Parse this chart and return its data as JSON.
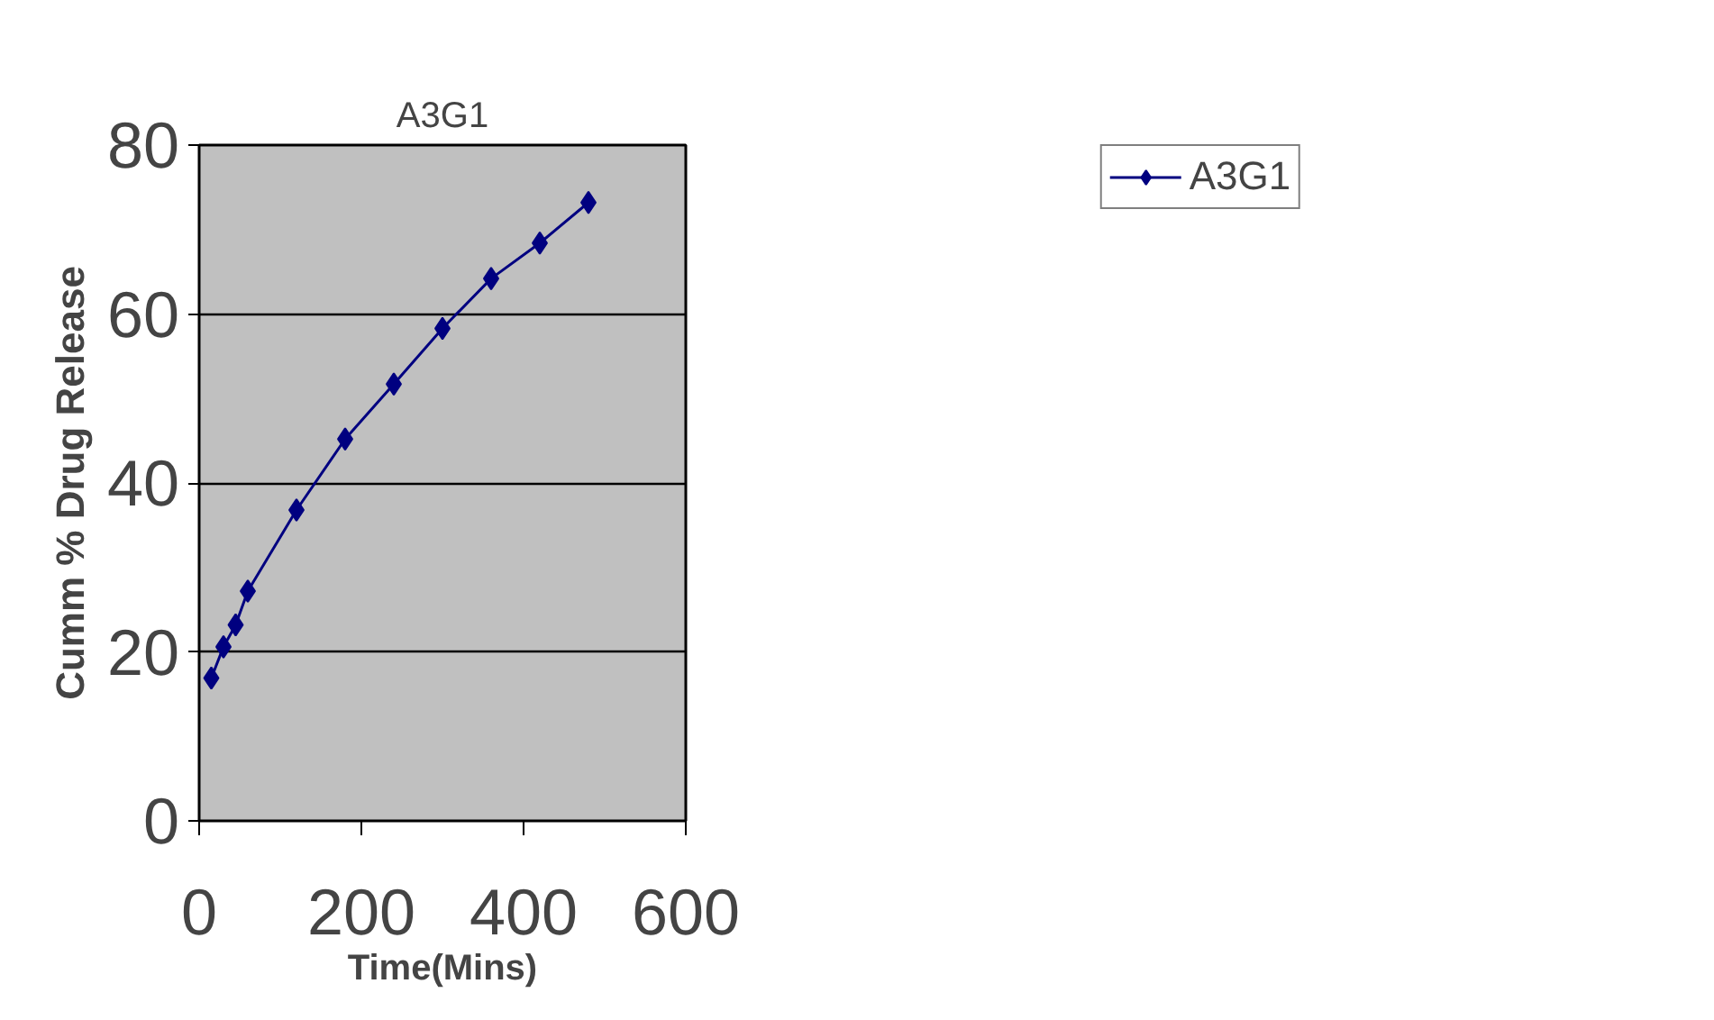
{
  "chart_data": {
    "type": "line",
    "title": "A3G1",
    "xlabel": "Time(Mins)",
    "ylabel": "Cumm % Drug Release",
    "x": [
      15,
      30,
      45,
      60,
      120,
      180,
      240,
      300,
      360,
      420,
      480
    ],
    "series": [
      {
        "name": "A3G1",
        "color": "#000080",
        "values": [
          16.9,
          20.6,
          23.2,
          27.2,
          36.8,
          45.2,
          51.7,
          58.3,
          64.2,
          68.4,
          73.2
        ]
      }
    ],
    "xlim": [
      0,
      600
    ],
    "xticks": [
      0,
      200,
      400,
      600
    ],
    "ylim": [
      0,
      80
    ],
    "yticks": [
      0,
      20,
      40,
      60,
      80
    ],
    "grid": "y",
    "legend": "top right",
    "marker": "diamond",
    "line_style": "solid"
  }
}
